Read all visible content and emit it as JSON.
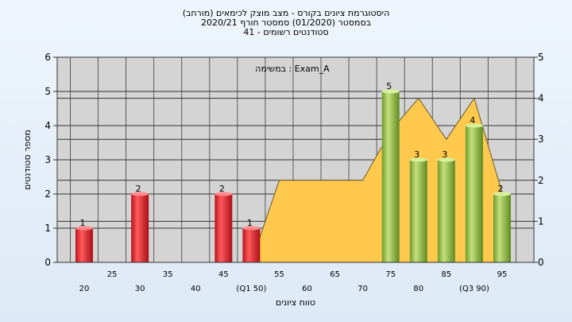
{
  "header": {
    "title": "(היסטוגרמת ציונים בקורס - מצב מוצק לכימאים (מורחב",
    "subtitle": "בסמסטר  (01/2020)  סמסטר חורף  2020/21",
    "students": "סטודנטים רשומים - 41"
  },
  "chart_data": {
    "type": "bar",
    "title": "",
    "annotation": "במשימה : Exam_A",
    "xlabel": "טווח ציונים",
    "ylabel": "מספר סטודנטים",
    "ylim": [
      0,
      6
    ],
    "y2lim": [
      0,
      5
    ],
    "yticks": [
      0,
      1,
      2,
      3,
      4,
      5,
      6
    ],
    "y2ticks": [
      0,
      1,
      2,
      3,
      4,
      5
    ],
    "x_tick_labels": [
      "20",
      "25",
      "30",
      "35",
      "40",
      "45",
      "(Q1 50)",
      "55",
      "60",
      "65",
      "70",
      "75",
      "80",
      "85",
      "(Q3 90)",
      "95"
    ],
    "bars": [
      {
        "x": 20,
        "value": 1,
        "color": "red"
      },
      {
        "x": 30,
        "value": 2,
        "color": "red"
      },
      {
        "x": 45,
        "value": 2,
        "color": "red"
      },
      {
        "x": 50,
        "value": 1,
        "color": "red"
      },
      {
        "x": 75,
        "value": 5,
        "color": "green"
      },
      {
        "x": 80,
        "value": 3,
        "color": "green"
      },
      {
        "x": 85,
        "value": 3,
        "color": "green"
      },
      {
        "x": 90,
        "value": 4,
        "color": "green"
      },
      {
        "x": 95,
        "value": 2,
        "color": "green"
      }
    ],
    "area": {
      "color": "#ffc94d",
      "points": [
        [
          50,
          0
        ],
        [
          55,
          2
        ],
        [
          60,
          2
        ],
        [
          65,
          2
        ],
        [
          70,
          2
        ],
        [
          75,
          3.2
        ],
        [
          80,
          4
        ],
        [
          85,
          3
        ],
        [
          90,
          4
        ],
        [
          95,
          1.7
        ]
      ]
    },
    "grid": true,
    "colors": {
      "red": "#e0262b",
      "green": "#8bbf3c",
      "area": "#ffc94d",
      "plot_bg": "#d4d4d4"
    }
  }
}
